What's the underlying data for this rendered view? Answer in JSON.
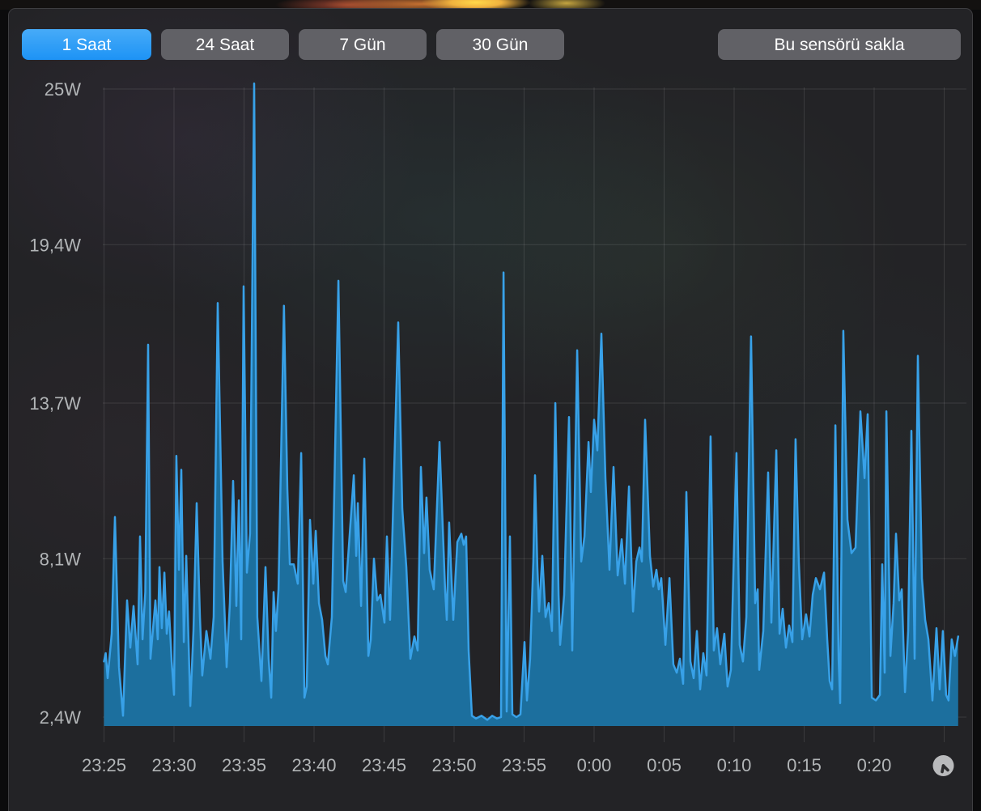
{
  "toolbar": {
    "time_range_buttons": [
      {
        "label": "1 Saat",
        "active": true
      },
      {
        "label": "24 Saat",
        "active": false
      },
      {
        "label": "7 Gün",
        "active": false
      },
      {
        "label": "30 Gün",
        "active": false
      }
    ],
    "hide_sensor_label": "Bu sensörü sakla"
  },
  "icons": {
    "clock": "clock-icon"
  },
  "colors": {
    "active_button_blue": "#2d9ff6",
    "button_gray": "#616166",
    "line": "#38a1e8",
    "fill": "#1c6f9e",
    "axis_text": "#b2b5b7",
    "gridline": "rgba(255,255,255,0.11)"
  },
  "chart_data": {
    "type": "area",
    "title": "",
    "xlabel": "",
    "ylabel": "",
    "unit": "W",
    "legend": "none",
    "grid": "on",
    "y_ticks": [
      {
        "value": 25,
        "label": "25W"
      },
      {
        "value": 19.4,
        "label": "19,4W"
      },
      {
        "value": 13.7,
        "label": "13,7W"
      },
      {
        "value": 8.1,
        "label": "8,1W"
      },
      {
        "value": 2.4,
        "label": "2,4W"
      }
    ],
    "x_ticks": [
      {
        "minute": 0,
        "label": "23:25"
      },
      {
        "minute": 5,
        "label": "23:30"
      },
      {
        "minute": 10,
        "label": "23:35"
      },
      {
        "minute": 15,
        "label": "23:40"
      },
      {
        "minute": 20,
        "label": "23:45"
      },
      {
        "minute": 25,
        "label": "23:50"
      },
      {
        "minute": 30,
        "label": "23:55"
      },
      {
        "minute": 35,
        "label": "0:00"
      },
      {
        "minute": 40,
        "label": "0:05"
      },
      {
        "minute": 45,
        "label": "0:10"
      },
      {
        "minute": 50,
        "label": "0:15"
      },
      {
        "minute": 55,
        "label": "0:20"
      },
      {
        "minute": 60,
        "label": ""
      }
    ],
    "x_range_minutes": [
      0,
      61
    ],
    "y_range_watts": [
      2.4,
      25
    ],
    "points": [
      [
        0.0,
        4.4
      ],
      [
        0.12,
        4.7
      ],
      [
        0.26,
        3.8
      ],
      [
        0.55,
        5.4
      ],
      [
        0.78,
        9.6
      ],
      [
        1.07,
        4.2
      ],
      [
        1.36,
        2.45
      ],
      [
        1.65,
        6.6
      ],
      [
        1.88,
        4.9
      ],
      [
        2.11,
        6.4
      ],
      [
        2.4,
        4.3
      ],
      [
        2.57,
        8.9
      ],
      [
        2.75,
        5.2
      ],
      [
        2.95,
        6.9
      ],
      [
        3.15,
        15.8
      ],
      [
        3.32,
        4.5
      ],
      [
        3.67,
        6.6
      ],
      [
        3.84,
        5.2
      ],
      [
        3.96,
        7.8
      ],
      [
        4.13,
        5.6
      ],
      [
        4.31,
        7.6
      ],
      [
        4.48,
        5.4
      ],
      [
        4.65,
        6.2
      ],
      [
        4.83,
        4.4
      ],
      [
        5.0,
        3.2
      ],
      [
        5.17,
        11.8
      ],
      [
        5.35,
        7.7
      ],
      [
        5.52,
        11.3
      ],
      [
        5.7,
        5.1
      ],
      [
        5.87,
        8.2
      ],
      [
        6.16,
        2.8
      ],
      [
        6.39,
        5.5
      ],
      [
        6.62,
        10.1
      ],
      [
        6.85,
        6.0
      ],
      [
        7.02,
        3.9
      ],
      [
        7.31,
        5.5
      ],
      [
        7.6,
        4.5
      ],
      [
        7.83,
        6.0
      ],
      [
        8.12,
        17.3
      ],
      [
        8.47,
        8.0
      ],
      [
        8.76,
        4.2
      ],
      [
        8.99,
        6.5
      ],
      [
        9.22,
        10.9
      ],
      [
        9.45,
        6.4
      ],
      [
        9.63,
        10.2
      ],
      [
        9.8,
        5.2
      ],
      [
        9.97,
        17.9
      ],
      [
        10.2,
        7.6
      ],
      [
        10.43,
        9.0
      ],
      [
        10.72,
        25.2
      ],
      [
        10.95,
        6.0
      ],
      [
        11.24,
        3.7
      ],
      [
        11.53,
        7.8
      ],
      [
        11.76,
        4.5
      ],
      [
        11.94,
        3.1
      ],
      [
        12.11,
        6.9
      ],
      [
        12.28,
        5.5
      ],
      [
        12.46,
        7.0
      ],
      [
        12.85,
        17.2
      ],
      [
        13.09,
        10.6
      ],
      [
        13.27,
        7.9
      ],
      [
        13.55,
        7.9
      ],
      [
        13.84,
        7.2
      ],
      [
        14.08,
        11.9
      ],
      [
        14.31,
        3.1
      ],
      [
        14.48,
        3.5
      ],
      [
        14.71,
        9.5
      ],
      [
        14.95,
        7.2
      ],
      [
        15.12,
        9.1
      ],
      [
        15.35,
        6.5
      ],
      [
        15.58,
        5.9
      ],
      [
        15.81,
        4.6
      ],
      [
        15.98,
        4.3
      ],
      [
        16.27,
        6.0
      ],
      [
        16.74,
        18.1
      ],
      [
        17.08,
        7.3
      ],
      [
        17.26,
        6.9
      ],
      [
        17.84,
        11.1
      ],
      [
        18.01,
        8.2
      ],
      [
        18.13,
        10.1
      ],
      [
        18.36,
        6.4
      ],
      [
        18.59,
        11.7
      ],
      [
        18.88,
        4.6
      ],
      [
        19.05,
        5.2
      ],
      [
        19.28,
        8.1
      ],
      [
        19.51,
        6.6
      ],
      [
        19.74,
        6.8
      ],
      [
        20.03,
        5.8
      ],
      [
        20.2,
        8.9
      ],
      [
        20.43,
        5.9
      ],
      [
        21.01,
        16.6
      ],
      [
        21.3,
        9.9
      ],
      [
        21.59,
        7.8
      ],
      [
        21.88,
        4.5
      ],
      [
        22.17,
        5.3
      ],
      [
        22.4,
        4.8
      ],
      [
        22.63,
        11.4
      ],
      [
        22.86,
        8.3
      ],
      [
        23.03,
        10.3
      ],
      [
        23.26,
        7.7
      ],
      [
        23.55,
        7.0
      ],
      [
        23.96,
        12.3
      ],
      [
        24.36,
        7.0
      ],
      [
        24.48,
        5.9
      ],
      [
        24.65,
        9.4
      ],
      [
        24.94,
        5.9
      ],
      [
        25.23,
        8.7
      ],
      [
        25.52,
        9.0
      ],
      [
        25.69,
        8.6
      ],
      [
        25.86,
        8.9
      ],
      [
        26.04,
        4.8
      ],
      [
        26.27,
        2.45
      ],
      [
        26.56,
        2.35
      ],
      [
        26.96,
        2.45
      ],
      [
        27.37,
        2.3
      ],
      [
        27.72,
        2.45
      ],
      [
        28.06,
        2.35
      ],
      [
        28.35,
        2.4
      ],
      [
        28.53,
        18.4
      ],
      [
        28.76,
        2.6
      ],
      [
        28.99,
        8.9
      ],
      [
        29.16,
        2.5
      ],
      [
        29.45,
        2.4
      ],
      [
        29.74,
        2.5
      ],
      [
        30.03,
        5.1
      ],
      [
        30.2,
        3.0
      ],
      [
        30.43,
        4.5
      ],
      [
        30.66,
        8.0
      ],
      [
        30.78,
        11.1
      ],
      [
        30.95,
        7.8
      ],
      [
        31.07,
        6.2
      ],
      [
        31.3,
        8.2
      ],
      [
        31.53,
        6.0
      ],
      [
        31.76,
        6.5
      ],
      [
        31.99,
        5.5
      ],
      [
        32.23,
        13.7
      ],
      [
        32.46,
        6.8
      ],
      [
        32.57,
        5.0
      ],
      [
        32.86,
        6.8
      ],
      [
        33.21,
        13.2
      ],
      [
        33.44,
        4.8
      ],
      [
        33.79,
        15.6
      ],
      [
        34.08,
        8.0
      ],
      [
        34.31,
        8.9
      ],
      [
        34.6,
        12.3
      ],
      [
        34.77,
        10.5
      ],
      [
        35.0,
        13.1
      ],
      [
        35.23,
        12.0
      ],
      [
        35.52,
        16.2
      ],
      [
        35.81,
        11.0
      ],
      [
        36.1,
        7.7
      ],
      [
        36.39,
        11.4
      ],
      [
        36.68,
        7.5
      ],
      [
        36.97,
        8.8
      ],
      [
        37.2,
        7.2
      ],
      [
        37.49,
        10.7
      ],
      [
        37.78,
        6.2
      ],
      [
        38.01,
        8.0
      ],
      [
        38.24,
        8.5
      ],
      [
        38.41,
        8.0
      ],
      [
        38.64,
        13.1
      ],
      [
        38.99,
        8.2
      ],
      [
        39.22,
        7.1
      ],
      [
        39.45,
        7.7
      ],
      [
        39.62,
        7.0
      ],
      [
        39.8,
        7.4
      ],
      [
        40.09,
        5.0
      ],
      [
        40.38,
        7.4
      ],
      [
        40.66,
        4.3
      ],
      [
        40.9,
        4.0
      ],
      [
        41.13,
        4.5
      ],
      [
        41.36,
        3.6
      ],
      [
        41.59,
        10.5
      ],
      [
        41.88,
        4.4
      ],
      [
        42.11,
        3.8
      ],
      [
        42.34,
        5.5
      ],
      [
        42.57,
        3.4
      ],
      [
        42.8,
        4.7
      ],
      [
        43.03,
        3.9
      ],
      [
        43.32,
        12.5
      ],
      [
        43.55,
        4.8
      ],
      [
        43.78,
        5.6
      ],
      [
        44.01,
        4.3
      ],
      [
        44.3,
        5.4
      ],
      [
        44.53,
        3.5
      ],
      [
        44.77,
        4.1
      ],
      [
        45.17,
        11.9
      ],
      [
        45.4,
        5.0
      ],
      [
        45.63,
        4.4
      ],
      [
        45.87,
        6.0
      ],
      [
        46.21,
        16.1
      ],
      [
        46.5,
        6.5
      ],
      [
        46.68,
        7.0
      ],
      [
        46.79,
        4.1
      ],
      [
        47.08,
        5.5
      ],
      [
        47.43,
        11.2
      ],
      [
        47.66,
        5.8
      ],
      [
        48.01,
        12.0
      ],
      [
        48.24,
        5.4
      ],
      [
        48.47,
        6.3
      ],
      [
        48.7,
        4.9
      ],
      [
        48.93,
        5.7
      ],
      [
        49.16,
        5.1
      ],
      [
        49.39,
        12.4
      ],
      [
        49.62,
        8.0
      ],
      [
        49.86,
        5.2
      ],
      [
        50.14,
        6.1
      ],
      [
        50.38,
        5.3
      ],
      [
        50.61,
        6.8
      ],
      [
        50.84,
        7.4
      ],
      [
        51.13,
        7.0
      ],
      [
        51.42,
        7.6
      ],
      [
        51.65,
        5.2
      ],
      [
        51.82,
        3.7
      ],
      [
        52.0,
        3.4
      ],
      [
        52.23,
        12.9
      ],
      [
        52.46,
        4.5
      ],
      [
        52.57,
        2.9
      ],
      [
        52.8,
        16.3
      ],
      [
        53.09,
        9.5
      ],
      [
        53.38,
        8.3
      ],
      [
        53.67,
        8.5
      ],
      [
        54.02,
        13.4
      ],
      [
        54.31,
        11.0
      ],
      [
        54.54,
        13.3
      ],
      [
        54.83,
        3.1
      ],
      [
        55.12,
        3.0
      ],
      [
        55.41,
        3.2
      ],
      [
        55.58,
        7.9
      ],
      [
        55.75,
        4.0
      ],
      [
        55.87,
        13.4
      ],
      [
        56.16,
        4.6
      ],
      [
        56.39,
        6.5
      ],
      [
        56.56,
        9.0
      ],
      [
        56.79,
        6.6
      ],
      [
        56.97,
        7.0
      ],
      [
        57.2,
        3.3
      ],
      [
        57.43,
        5.5
      ],
      [
        57.66,
        12.7
      ],
      [
        57.89,
        4.5
      ],
      [
        58.12,
        15.4
      ],
      [
        58.41,
        7.4
      ],
      [
        58.64,
        5.9
      ],
      [
        58.87,
        5.2
      ],
      [
        59.16,
        3.0
      ],
      [
        59.45,
        5.6
      ],
      [
        59.68,
        3.4
      ],
      [
        59.91,
        5.5
      ],
      [
        60.14,
        3.2
      ],
      [
        60.31,
        3.0
      ],
      [
        60.54,
        5.2
      ],
      [
        60.77,
        4.6
      ],
      [
        61.0,
        5.3
      ]
    ]
  }
}
